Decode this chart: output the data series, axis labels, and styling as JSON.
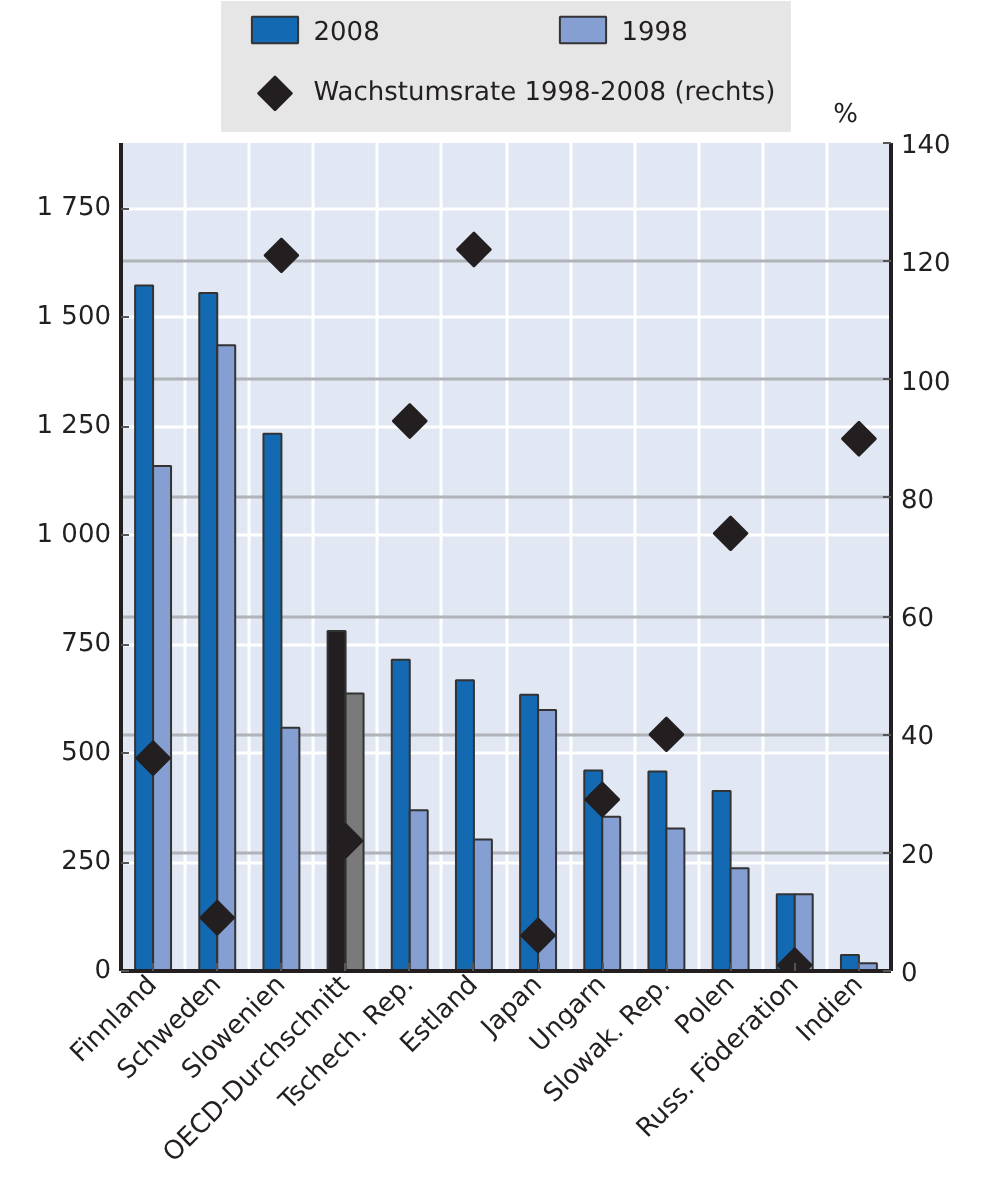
{
  "chart_data": {
    "type": "bar",
    "categories": [
      "Finnland",
      "Schweden",
      "Slowenien",
      "OECD-Durchschnitt",
      "Tschech. Rep.",
      "Estland",
      "Japan",
      "Ungarn",
      "Slowak. Rep.",
      "Polen",
      "Russ. Föderation",
      "Indien"
    ],
    "series": [
      {
        "name": "2008",
        "color": "#136ab3",
        "colors": [
          "#136ab3",
          "#136ab3",
          "#136ab3",
          "#231f20",
          "#136ab3",
          "#136ab3",
          "#136ab3",
          "#136ab3",
          "#136ab3",
          "#136ab3",
          "#136ab3",
          "#136ab3"
        ],
        "values": [
          1573,
          1556,
          1233,
          780,
          714,
          667,
          634,
          460,
          458,
          413,
          176,
          37
        ]
      },
      {
        "name": "1998",
        "color": "#859fd2",
        "colors": [
          "#859fd2",
          "#859fd2",
          "#859fd2",
          "#7a7a7a",
          "#859fd2",
          "#859fd2",
          "#859fd2",
          "#859fd2",
          "#859fd2",
          "#859fd2",
          "#859fd2",
          "#859fd2"
        ],
        "values": [
          1159,
          1436,
          558,
          637,
          369,
          302,
          599,
          354,
          327,
          236,
          176,
          18
        ]
      },
      {
        "name": "Wachstumsrate 1998-2008 (rechts)",
        "type": "scatter",
        "axis": "y2",
        "marker": "diamond",
        "color": "#231f20",
        "values": [
          36,
          9,
          121,
          22,
          93,
          122,
          6,
          29,
          40,
          74,
          1,
          90
        ]
      }
    ],
    "ylim": [
      0,
      1900
    ],
    "yticks": [
      0,
      250,
      500,
      750,
      {
        "value": 1000,
        "label": "1 000"
      },
      {
        "value": 1250,
        "label": "1 250"
      },
      {
        "value": 1500,
        "label": "1 500"
      },
      {
        "value": 1750,
        "label": "1 750"
      }
    ],
    "y2lim": [
      0,
      140
    ],
    "y2ticks": [
      0,
      20,
      40,
      60,
      80,
      100,
      120,
      140
    ],
    "y2label": "%",
    "grid": true,
    "legend": "top"
  }
}
